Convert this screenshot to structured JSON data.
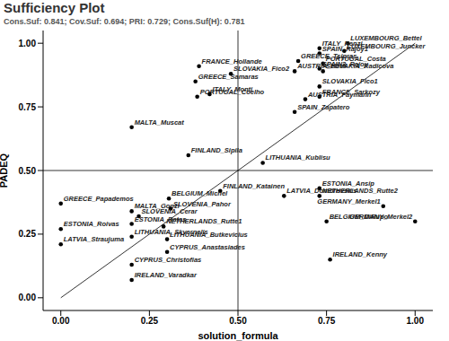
{
  "chart_data": {
    "type": "scatter",
    "title": "Sufficiency Plot",
    "subtitle": "Cons.Suf: 0.841; Cov.Suf: 0.694; PRI: 0.729; Cons.Suf(H): 0.781",
    "x_label": "solution_formula",
    "y_label": "PADEQ",
    "labels": [
      "LUXEMBOURG_Bettel",
      "LUXEMBOURG_Juncker",
      "ITALY_Renzi",
      "SPAIN_Rajoy1",
      "PORTUGAL_Costa",
      "GREECE_Tsipras",
      "SPAIN3_Rajoy",
      "SLOVAKIA_Radicova",
      "AUSTRIA_Kern",
      "SLOVAKIA_Fico1",
      "FRANCE_Sarkozy",
      "AUSTRIA_Faymann",
      "SPAIN_Zapatero",
      "FRANCE_Hollande",
      "SLOVAKIA_Fico2",
      "GREECE_Samaras",
      "PORTUGAL_Coelho",
      "ITALY_Monti",
      "MALTA_Muscat",
      "FINLAND_Sipila",
      "LITHUANIA_Kublisu",
      "FINLAND_Katainen",
      "ESTONIA_Ansip",
      "LATVIA_Dombrovskis",
      "NETHERLANDS_Rutte2",
      "GERMANY_Merkel1",
      "GERMANY_Merkel2",
      "BELGIUM_DiRupo",
      "IRELAND_Kenny",
      "GREECE_Papademos",
      "BELGIUM_Michel",
      "MALTA_Gonzi",
      "SLOVENIA_Pahor",
      "SLOVENIA_Cerar",
      "ESTONIA_Ratas",
      "NETHERLANDS_Rutte1",
      "ESTONIA_Roivas",
      "LITHUANIA_Skvernelis",
      "LITHUANIA_Butkevicius",
      "LATVIA_Straujuma",
      "CYPRUS_Anastasiades",
      "CYPRUS_Christofias",
      "IRELAND_Varadkar"
    ],
    "x": [
      0.81,
      0.8,
      0.73,
      0.73,
      0.74,
      0.67,
      0.73,
      0.74,
      0.66,
      0.73,
      0.73,
      0.69,
      0.66,
      0.39,
      0.48,
      0.38,
      0.385,
      0.42,
      0.2,
      0.36,
      0.57,
      0.45,
      0.73,
      0.63,
      0.73,
      0.91,
      1.0,
      0.75,
      0.76,
      0.0,
      0.305,
      0.2,
      0.31,
      0.22,
      0.2,
      0.29,
      0.0,
      0.2,
      0.3,
      0.0,
      0.3,
      0.2,
      0.2
    ],
    "values": [
      1.0,
      0.97,
      0.98,
      0.96,
      0.92,
      0.93,
      0.9,
      0.89,
      0.89,
      0.83,
      0.79,
      0.78,
      0.73,
      0.91,
      0.88,
      0.85,
      0.79,
      0.8,
      0.67,
      0.56,
      0.53,
      0.42,
      0.43,
      0.4,
      0.4,
      0.36,
      0.3,
      0.3,
      0.15,
      0.37,
      0.39,
      0.34,
      0.35,
      0.32,
      0.29,
      0.28,
      0.27,
      0.24,
      0.23,
      0.21,
      0.18,
      0.13,
      0.07
    ],
    "color": "#000000",
    "xlim": [
      -0.05,
      1.05
    ],
    "ylim": [
      -0.05,
      1.05
    ],
    "xticks": [
      {
        "value": 0,
        "label": "0.00"
      },
      {
        "value": 0.25,
        "label": "0.25"
      },
      {
        "value": 0.5,
        "label": "0.50"
      },
      {
        "value": 0.75,
        "label": "0.75"
      },
      {
        "value": 1,
        "label": "1.00"
      }
    ],
    "yticks": [
      {
        "value": 0,
        "label": "0.00"
      },
      {
        "value": 0.25,
        "label": "0.25"
      },
      {
        "value": 0.5,
        "label": "0.50"
      },
      {
        "value": 0.75,
        "label": "0.75"
      },
      {
        "value": 1,
        "label": "1.00"
      }
    ],
    "thresholds": {
      "x": 0.5,
      "y": 0.5
    },
    "diagonal": [
      [
        0,
        0
      ],
      [
        1,
        1
      ]
    ],
    "grid": false
  }
}
